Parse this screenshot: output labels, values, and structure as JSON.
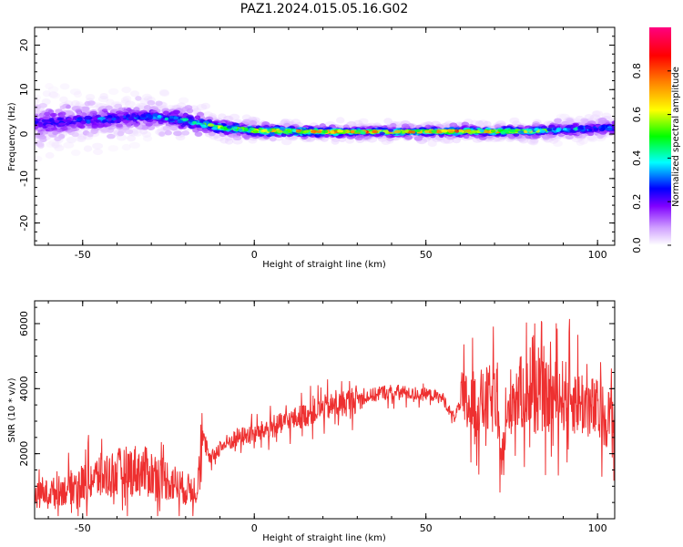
{
  "figure": {
    "title": "PAZ1.2024.015.05.16.G02"
  },
  "chart_data": [
    {
      "type": "heatmap",
      "name": "spectrogram",
      "xlabel": "Height of straight line (km)",
      "ylabel": "Frequency (Hz)",
      "xlim": [
        -64,
        105
      ],
      "ylim": [
        -25,
        24
      ],
      "xticks": [
        -50,
        0,
        50,
        100
      ],
      "yticks": [
        -20,
        -10,
        0,
        10,
        20
      ],
      "colorbar": {
        "label": "Normalized spectral amplitude",
        "range": [
          0,
          1
        ],
        "ticks": [
          "0.0",
          "0.2",
          "0.4",
          "0.6",
          "0.8"
        ],
        "tick_values": [
          0,
          0.2,
          0.4,
          0.6,
          0.8
        ],
        "colormap": [
          "#ffffff",
          "#d0a0ff",
          "#8000ff",
          "#0000ff",
          "#00ffff",
          "#00ff00",
          "#ffff00",
          "#ff8000",
          "#ff0000",
          "#ff0080"
        ]
      },
      "ridge": [
        {
          "x": -64,
          "f": 2.5,
          "amp": 0.35,
          "spread": 4.0
        },
        {
          "x": -50,
          "f": 3.0,
          "amp": 0.4,
          "spread": 3.5
        },
        {
          "x": -40,
          "f": 3.5,
          "amp": 0.42,
          "spread": 3.0
        },
        {
          "x": -30,
          "f": 4.0,
          "amp": 0.45,
          "spread": 2.8
        },
        {
          "x": -20,
          "f": 3.0,
          "amp": 0.55,
          "spread": 2.2
        },
        {
          "x": -10,
          "f": 1.5,
          "amp": 0.7,
          "spread": 1.5
        },
        {
          "x": 0,
          "f": 0.8,
          "amp": 0.8,
          "spread": 1.2
        },
        {
          "x": 20,
          "f": 0.5,
          "amp": 0.85,
          "spread": 1.0
        },
        {
          "x": 40,
          "f": 0.5,
          "amp": 0.8,
          "spread": 1.0
        },
        {
          "x": 60,
          "f": 0.6,
          "amp": 0.85,
          "spread": 1.0
        },
        {
          "x": 80,
          "f": 0.6,
          "amp": 0.75,
          "spread": 1.0
        },
        {
          "x": 90,
          "f": 1.0,
          "amp": 0.5,
          "spread": 1.5
        },
        {
          "x": 105,
          "f": 1.5,
          "amp": 0.45,
          "spread": 1.8
        }
      ]
    },
    {
      "type": "line",
      "name": "snr",
      "xlabel": "Height of straight line (km)",
      "ylabel": "SNR (10 * v/v)",
      "xlim": [
        -64,
        105
      ],
      "ylim": [
        0,
        6700
      ],
      "xticks": [
        -50,
        0,
        50,
        100
      ],
      "yticks": [
        2000,
        4000,
        6000
      ],
      "color": "#ee3030",
      "series": [
        {
          "x": [
            -64,
            -60,
            -55,
            -50,
            -45,
            -40,
            -35,
            -30,
            -25,
            -20,
            -17,
            -15,
            -13,
            -10,
            -5,
            0,
            5,
            10,
            15,
            20,
            25,
            30,
            35,
            38,
            40,
            42,
            45,
            48,
            50,
            55,
            58,
            60,
            65,
            70,
            72,
            75,
            80,
            85,
            90,
            95,
            100,
            105
          ],
          "y": [
            700,
            800,
            900,
            1100,
            1300,
            1400,
            1500,
            1400,
            1200,
            900,
            900,
            2500,
            1800,
            2200,
            2500,
            2600,
            2800,
            3000,
            3200,
            3400,
            3500,
            3700,
            3800,
            3900,
            3800,
            3900,
            3850,
            3800,
            3850,
            3700,
            3100,
            3500,
            3500,
            3700,
            1800,
            3800,
            3900,
            3700,
            3800,
            3600,
            3300,
            3000
          ]
        }
      ]
    }
  ]
}
